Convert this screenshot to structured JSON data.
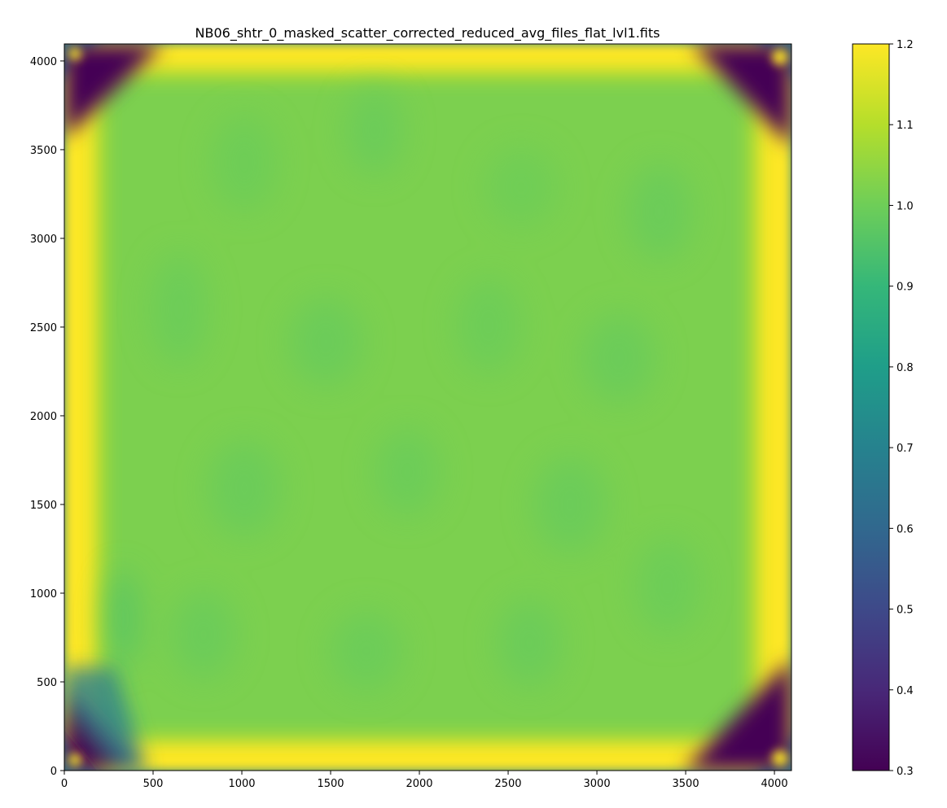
{
  "chart_data": {
    "type": "heatmap",
    "title": "NB06_shtr_0_masked_scatter_corrected_reduced_avg_files_flat_lvl1.fits",
    "xlabel": "",
    "ylabel": "",
    "xlim": [
      0,
      4096
    ],
    "ylim": [
      0,
      4096
    ],
    "x_ticks": [
      0,
      500,
      1000,
      1500,
      2000,
      2500,
      3000,
      3500,
      4000
    ],
    "y_ticks": [
      0,
      500,
      1000,
      1500,
      2000,
      2500,
      3000,
      3500,
      4000
    ],
    "colormap": "viridis",
    "color_range": [
      0.3,
      1.2
    ],
    "colorbar_ticks": [
      0.3,
      0.4,
      0.5,
      0.6,
      0.7,
      0.8,
      0.9,
      1.0,
      1.1,
      1.2
    ],
    "colorbar_labels": [
      "0.3",
      "0.4",
      "0.5",
      "0.6",
      "0.7",
      "0.8",
      "0.9",
      "1.0",
      "1.1",
      "1.2"
    ],
    "grid": false,
    "field_description": {
      "interior_level": 0.99,
      "edge_band_level": 1.2,
      "corner_level": 0.3,
      "corners": [
        "bottom-left",
        "bottom-right",
        "top-left",
        "top-right"
      ]
    }
  }
}
